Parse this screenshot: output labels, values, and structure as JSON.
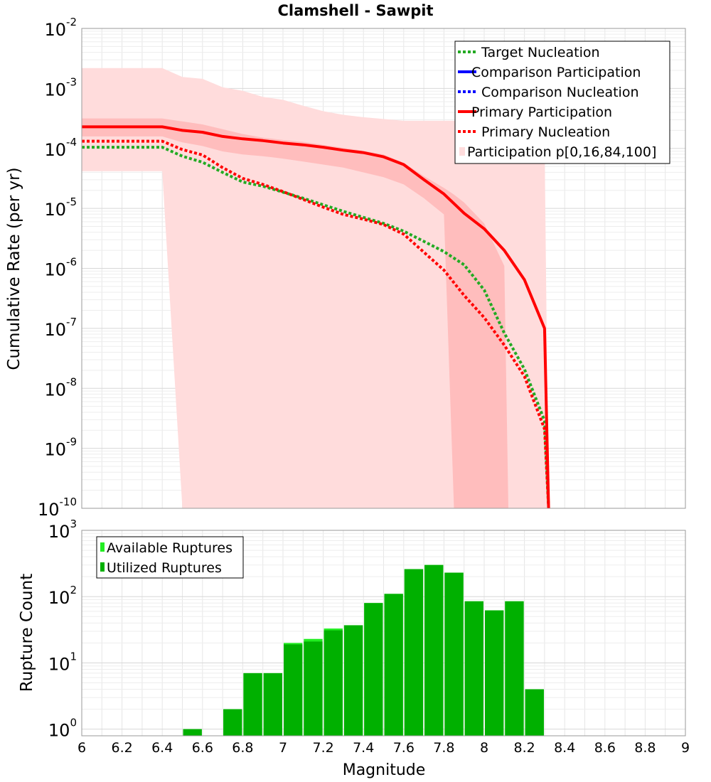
{
  "chart_data": [
    {
      "type": "line",
      "title": "Clamshell - Sawpit",
      "xlabel": "",
      "ylabel": "Cumulative Rate (per yr)",
      "xlim": [
        6,
        9
      ],
      "ylim_log10": [
        -10,
        -2
      ],
      "yscale": "log",
      "grid": true,
      "legend_placement": "top-right",
      "ytick_exponents": [
        -10,
        -9,
        -8,
        -7,
        -6,
        -5,
        -4,
        -3,
        -2
      ],
      "ytick_base": "10",
      "legend": [
        {
          "label": "Target Nucleation",
          "color": "#22aa22",
          "style": "dotted"
        },
        {
          "label": "Comparison Participation",
          "color": "#0000ff",
          "style": "solid"
        },
        {
          "label": "Comparison Nucleation",
          "color": "#0000ff",
          "style": "dotted"
        },
        {
          "label": "Primary Participation",
          "color": "#ff0000",
          "style": "solid"
        },
        {
          "label": "Primary Nucleation",
          "color": "#ff0000",
          "style": "dotted"
        },
        {
          "label": "Participation p[0,16,84,100]",
          "color": "#ffdcdc",
          "style": "band"
        }
      ],
      "series": [
        {
          "name": "Primary Participation",
          "x": [
            6.0,
            6.4,
            6.5,
            6.6,
            6.7,
            6.8,
            6.9,
            7.0,
            7.1,
            7.2,
            7.3,
            7.4,
            7.5,
            7.6,
            7.7,
            7.8,
            7.9,
            8.0,
            8.1,
            8.2,
            8.3,
            8.32
          ],
          "log10": [
            -3.64,
            -3.64,
            -3.7,
            -3.73,
            -3.8,
            -3.84,
            -3.87,
            -3.91,
            -3.94,
            -3.98,
            -4.03,
            -4.07,
            -4.14,
            -4.27,
            -4.52,
            -4.76,
            -5.08,
            -5.34,
            -5.7,
            -6.19,
            -7.0,
            -10.0
          ]
        },
        {
          "name": "Primary Nucleation",
          "x": [
            6.0,
            6.4,
            6.5,
            6.6,
            6.7,
            6.8,
            6.9,
            7.0,
            7.1,
            7.2,
            7.3,
            7.4,
            7.5,
            7.6,
            7.7,
            7.8,
            7.9,
            8.0,
            8.1,
            8.2,
            8.3,
            8.32
          ],
          "log10": [
            -3.88,
            -3.88,
            -4.02,
            -4.11,
            -4.32,
            -4.5,
            -4.6,
            -4.72,
            -4.85,
            -4.98,
            -5.1,
            -5.18,
            -5.27,
            -5.43,
            -5.73,
            -6.03,
            -6.45,
            -6.82,
            -7.28,
            -7.8,
            -8.68,
            -10.0
          ]
        },
        {
          "name": "Target Nucleation",
          "x": [
            6.0,
            6.4,
            6.5,
            6.6,
            6.7,
            6.8,
            6.9,
            7.0,
            7.1,
            7.2,
            7.3,
            7.4,
            7.5,
            7.6,
            7.7,
            7.8,
            7.9,
            8.0,
            8.1,
            8.2,
            8.3,
            8.32
          ],
          "log10": [
            -3.98,
            -3.98,
            -4.13,
            -4.23,
            -4.4,
            -4.56,
            -4.63,
            -4.73,
            -4.83,
            -4.94,
            -5.05,
            -5.15,
            -5.25,
            -5.38,
            -5.55,
            -5.72,
            -5.94,
            -6.36,
            -7.08,
            -7.68,
            -8.54,
            -10.0
          ]
        }
      ],
      "band_outer": {
        "x": [
          6.0,
          6.4,
          6.5,
          6.6,
          6.7,
          6.8,
          6.9,
          7.0,
          7.1,
          7.2,
          7.3,
          7.4,
          7.5,
          7.6,
          7.7,
          7.8,
          7.9,
          8.0,
          8.1,
          8.2,
          8.3,
          8.32
        ],
        "upper": [
          -2.66,
          -2.66,
          -2.81,
          -2.84,
          -2.98,
          -3.04,
          -3.14,
          -3.19,
          -3.29,
          -3.38,
          -3.44,
          -3.48,
          -3.51,
          -3.54,
          -3.54,
          -3.54,
          -3.54,
          -3.54,
          -3.65,
          -3.75,
          -3.85,
          -10.0
        ],
        "lower": [
          -4.38,
          -4.38,
          -10.0,
          -10.0,
          -10.0,
          -10.0,
          -10.0,
          -10.0,
          -10.0,
          -10.0,
          -10.0,
          -10.0,
          -10.0,
          -10.0,
          -10.0,
          -10.0,
          -10.0,
          -10.0,
          -10.0,
          -10.0,
          -10.0,
          -10.0
        ]
      },
      "band_inner": {
        "x": [
          6.0,
          6.4,
          6.5,
          6.6,
          6.7,
          6.8,
          6.9,
          7.0,
          7.1,
          7.2,
          7.3,
          7.4,
          7.5,
          7.6,
          7.7,
          7.8,
          7.85,
          7.9,
          8.0,
          8.1,
          8.12
        ],
        "upper": [
          -3.5,
          -3.5,
          -3.55,
          -3.6,
          -3.68,
          -3.76,
          -3.82,
          -3.86,
          -3.89,
          -3.94,
          -3.99,
          -4.04,
          -4.1,
          -4.24,
          -4.46,
          -4.66,
          -4.77,
          -4.9,
          -5.25,
          -5.96,
          -10.0
        ],
        "lower": [
          -3.8,
          -3.8,
          -3.9,
          -3.96,
          -4.05,
          -4.1,
          -4.13,
          -4.17,
          -4.22,
          -4.27,
          -4.32,
          -4.4,
          -4.48,
          -4.6,
          -4.83,
          -5.1,
          -10.0,
          -10.0,
          -10.0,
          -10.0,
          -10.0
        ]
      }
    },
    {
      "type": "bar",
      "xlabel": "Magnitude",
      "ylabel": "Rupture Count",
      "xlim": [
        6,
        9
      ],
      "ylim_log10": [
        -0.1,
        3
      ],
      "yscale": "log",
      "grid": true,
      "legend_placement": "top-left",
      "ytick_exponents": [
        0,
        1,
        2,
        3
      ],
      "ytick_base": "10",
      "xticks": [
        "6",
        "6.2",
        "6.4",
        "6.6",
        "6.8",
        "7",
        "7.2",
        "7.4",
        "7.6",
        "7.8",
        "8",
        "8.2",
        "8.4",
        "8.6",
        "8.8",
        "9"
      ],
      "bin_width": 0.1,
      "legend": [
        {
          "label": "Available Ruptures",
          "color": "#22ee22"
        },
        {
          "label": "Utilized Ruptures",
          "color": "#00b000"
        }
      ],
      "series": [
        {
          "name": "Available Ruptures",
          "x": [
            6.55,
            6.75,
            6.85,
            6.95,
            7.05,
            7.15,
            7.25,
            7.35,
            7.45,
            7.55,
            7.65,
            7.75,
            7.85,
            7.95,
            8.05,
            8.15,
            8.25
          ],
          "values": [
            1,
            2,
            7,
            7,
            20,
            23,
            33,
            37,
            80,
            110,
            260,
            300,
            230,
            85,
            62,
            85,
            4
          ]
        },
        {
          "name": "Utilized Ruptures",
          "x": [
            6.55,
            6.75,
            6.85,
            6.95,
            7.05,
            7.15,
            7.25,
            7.35,
            7.45,
            7.55,
            7.65,
            7.75,
            7.85,
            7.95,
            8.05,
            8.15,
            8.25
          ],
          "values": [
            1,
            2,
            7,
            7,
            19,
            21,
            31,
            37,
            80,
            110,
            260,
            300,
            230,
            85,
            62,
            85,
            4
          ]
        }
      ]
    }
  ]
}
